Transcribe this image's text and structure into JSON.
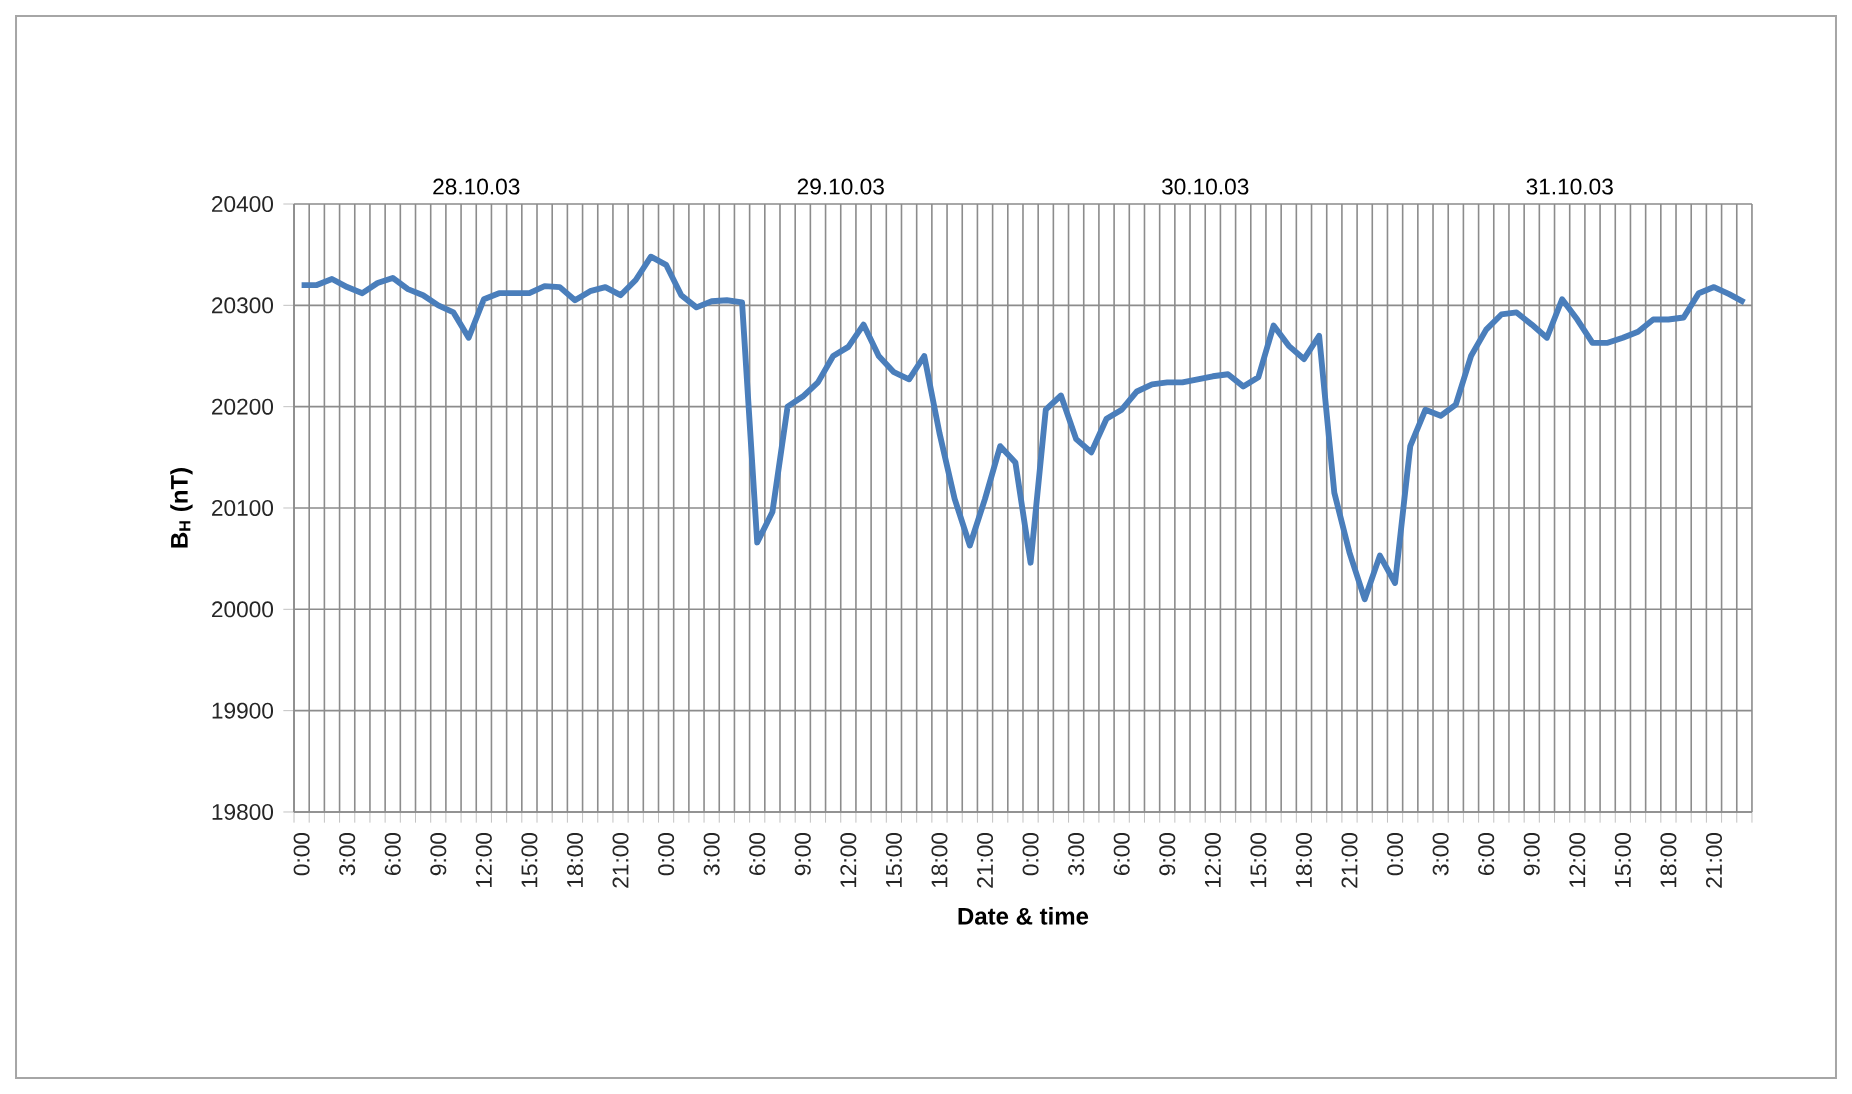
{
  "chart_data": {
    "type": "line",
    "xlabel": "Date & time",
    "ylabel": "B$_{H}$ (nT)",
    "annotations": [
      "28.10.03",
      "29.10.03",
      "30.10.03",
      "31.10.03"
    ],
    "categories": [
      "0:00",
      null,
      null,
      "3:00",
      null,
      null,
      "6:00",
      null,
      null,
      "9:00",
      null,
      null,
      "12:00",
      null,
      null,
      "15:00",
      null,
      null,
      "18:00",
      null,
      null,
      "21:00",
      null,
      null,
      "0:00",
      null,
      null,
      "3:00",
      null,
      null,
      "6:00",
      null,
      null,
      "9:00",
      null,
      null,
      "12:00",
      null,
      null,
      "15:00",
      null,
      null,
      "18:00",
      null,
      null,
      "21:00",
      null,
      null,
      "0:00",
      null,
      null,
      "3:00",
      null,
      null,
      "6:00",
      null,
      null,
      "9:00",
      null,
      null,
      "12:00",
      null,
      null,
      "15:00",
      null,
      null,
      "18:00",
      null,
      null,
      "21:00",
      null,
      null,
      "0:00",
      null,
      null,
      "3:00",
      null,
      null,
      "6:00",
      null,
      null,
      "9:00",
      null,
      null,
      "12:00",
      null,
      null,
      "15:00",
      null,
      null,
      "18:00",
      null,
      null,
      "21:00",
      null,
      null
    ],
    "values": [
      20320,
      20320,
      20326,
      20318,
      20312,
      20322,
      20327,
      20316,
      20310,
      20300,
      20293,
      20268,
      20306,
      20312,
      20312,
      20312,
      20319,
      20318,
      20305,
      20314,
      20318,
      20310,
      20325,
      20348,
      20340,
      20310,
      20298,
      20304,
      20305,
      20303,
      20066,
      20096,
      20200,
      20210,
      20224,
      20250,
      20259,
      20281,
      20250,
      20234,
      20227,
      20250,
      20174,
      20109,
      20063,
      20109,
      20161,
      20145,
      20046,
      20197,
      20211,
      20168,
      20155,
      20188,
      20197,
      20215,
      20222,
      20224,
      20224,
      20227,
      20230,
      20232,
      20220,
      20229,
      20280,
      20260,
      20247,
      20270,
      20115,
      20056,
      20010,
      20053,
      20026,
      20161,
      20197,
      20191,
      20202,
      20250,
      20276,
      20291,
      20293,
      20281,
      20268,
      20306,
      20286,
      20263,
      20263,
      20268,
      20274,
      20286,
      20286,
      20288,
      20312,
      20318,
      20311,
      20303
    ],
    "color": "#4a7ebb",
    "ylim": [
      19800,
      20400
    ],
    "yticks": [
      19800,
      19900,
      20000,
      20100,
      20200,
      20300,
      20400
    ],
    "grid": true
  }
}
